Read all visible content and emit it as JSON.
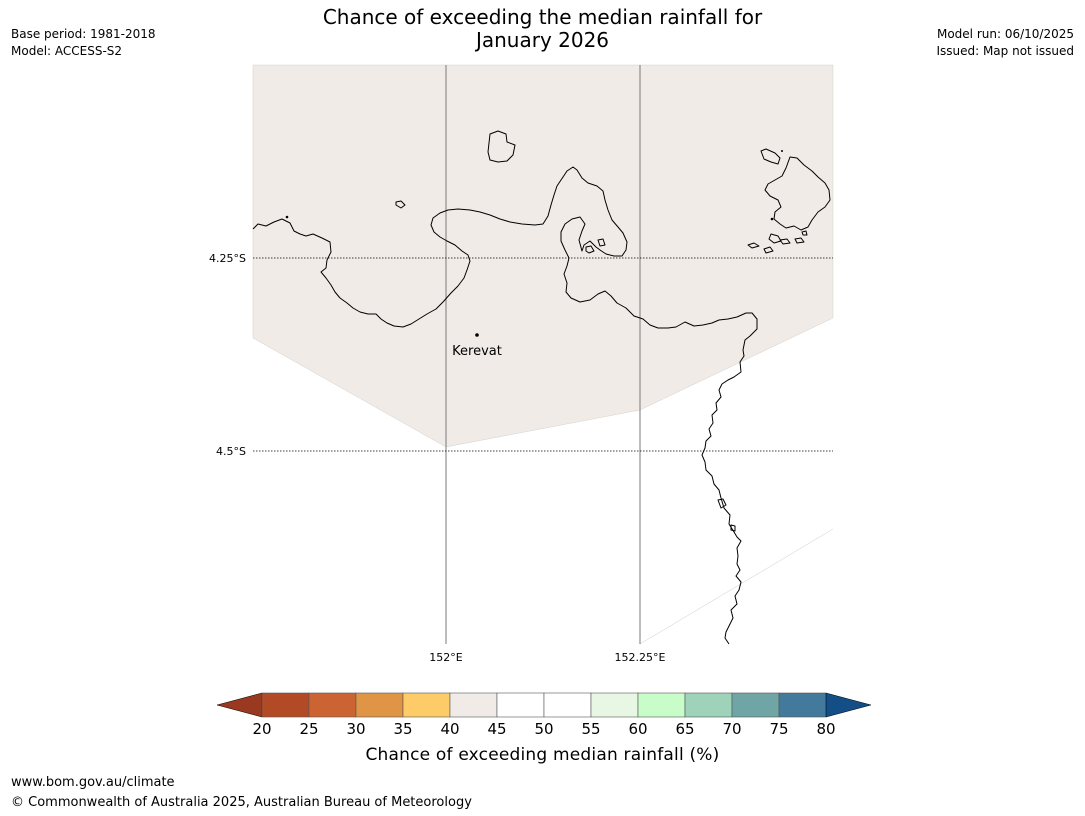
{
  "title": {
    "line1": "Chance of exceeding the median rainfall for",
    "line2": "January 2026"
  },
  "meta_left": {
    "base_period": "Base period: 1981-2018",
    "model": "Model: ACCESS-S2"
  },
  "meta_right": {
    "model_run": "Model run: 06/10/2025",
    "issued": "Issued: Map not issued"
  },
  "map": {
    "place_label": "Kerevat",
    "lat_ticks": [
      "4.25°S",
      "4.5°S"
    ],
    "lon_ticks": [
      "152°E",
      "152.25°E"
    ],
    "fill_color": "#f0ebe6",
    "fill_category": "40-45"
  },
  "colorbar": {
    "label": "Chance of exceeding median rainfall (%)",
    "ticks": [
      "20",
      "25",
      "30",
      "35",
      "40",
      "45",
      "50",
      "55",
      "60",
      "65",
      "70",
      "75",
      "80"
    ],
    "under_color": "#99391f",
    "over_color": "#134e87",
    "colors": [
      "#b24a26",
      "#cb6432",
      "#e09446",
      "#fdcc69",
      "#f0ebe6",
      "#ffffff",
      "#ffffff",
      "#e8f6e4",
      "#c8fcc8",
      "#9ed2b9",
      "#6fa5a5",
      "#43799b"
    ]
  },
  "footer": {
    "url": "www.bom.gov.au/climate",
    "copyright": "© Commonwealth of Australia 2025, Australian Bureau of Meteorology"
  }
}
